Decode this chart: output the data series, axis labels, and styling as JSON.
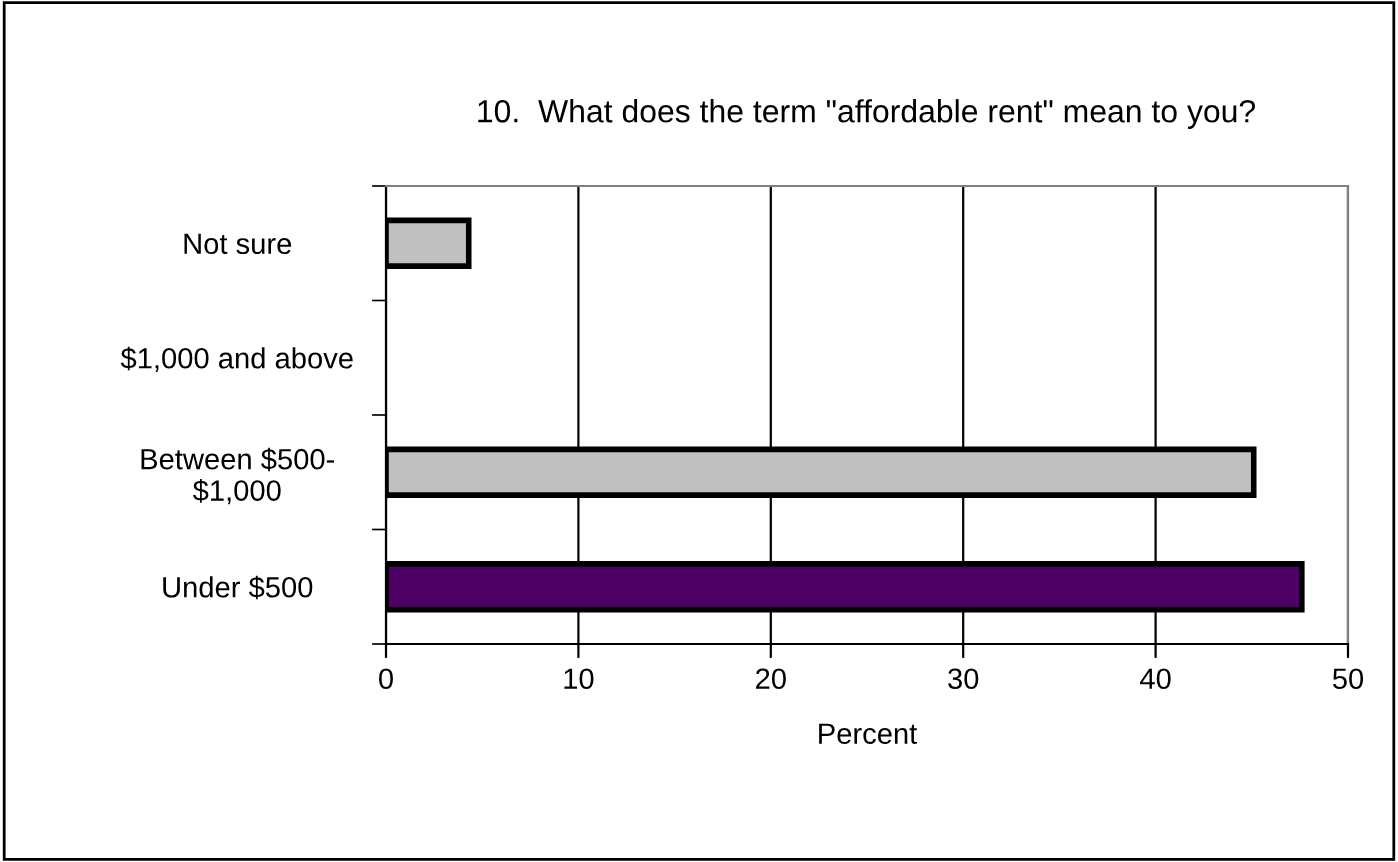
{
  "chart_data": {
    "type": "bar",
    "orientation": "horizontal",
    "title": "10.  What does the term \"affordable rent\" mean to you?",
    "xlabel": "Percent",
    "categories": [
      "Not sure",
      "$1,000 and above",
      "Between $500-\n$1,000",
      "Under $500"
    ],
    "values": [
      4.3,
      null,
      45.1,
      47.6
    ],
    "colors": [
      "#c0c0c0",
      "#c0c0c0",
      "#c0c0c0",
      "#4f0066"
    ],
    "xlim": [
      0,
      50
    ],
    "xticks": [
      0,
      10,
      20,
      30,
      40,
      50
    ],
    "grid": "x",
    "legend": false
  }
}
